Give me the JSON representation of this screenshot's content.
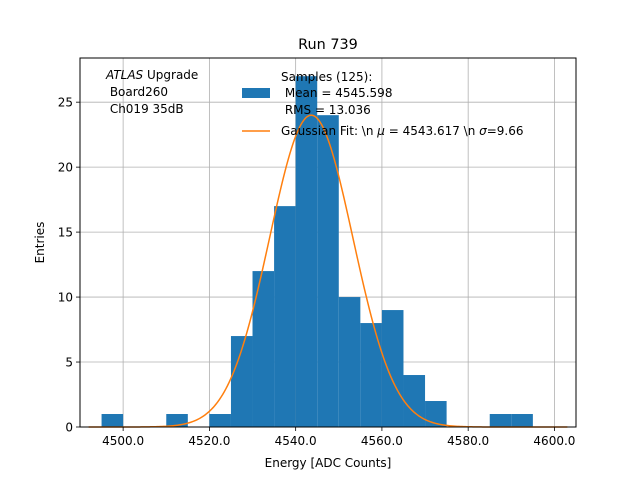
{
  "chart_data": {
    "type": "histogram",
    "title": "Run 739",
    "xlabel": "Energy [ADC Counts]",
    "ylabel": "Entries",
    "xlim": [
      4490,
      4605
    ],
    "ylim": [
      0,
      28.4
    ],
    "xticks": [
      4500.0,
      4520.0,
      4540.0,
      4560.0,
      4580.0,
      4600.0
    ],
    "xtick_labels": [
      "4500.0",
      "4520.0",
      "4540.0",
      "4560.0",
      "4580.0",
      "4600.0"
    ],
    "yticks": [
      0,
      5,
      10,
      15,
      20,
      25
    ],
    "ytick_labels": [
      "0",
      "5",
      "10",
      "15",
      "20",
      "25"
    ],
    "grid": true,
    "bin_edges": [
      4495,
      4500,
      4505,
      4510,
      4515,
      4520,
      4525,
      4530,
      4535,
      4540,
      4545,
      4550,
      4555,
      4560,
      4565,
      4570,
      4575,
      4580,
      4585,
      4590,
      4595
    ],
    "counts": [
      1,
      0,
      0,
      1,
      0,
      1,
      7,
      12,
      17,
      27,
      24,
      10,
      8,
      9,
      4,
      2,
      0,
      0,
      1,
      1
    ],
    "bar_color": "#1f77b4",
    "fit": {
      "label": "Gaussian Fit: \\n $\\mu$ = 4543.617 \\n $\\sigma$=9.66",
      "label_parts": [
        "Gaussian Fit: \\n ",
        "μ",
        " = 4543.617 \\n ",
        "σ",
        "=9.66"
      ],
      "mu": 4543.617,
      "sigma": 9.66,
      "amplitude": 24.0,
      "color": "#ff7f0e"
    },
    "legend": {
      "placement": "top-center",
      "hist_lines": [
        "Samples (125):",
        " Mean = 4545.598",
        " RMS = 13.036"
      ]
    },
    "annotation": {
      "italic_word": "ATLAS",
      "rest_first_line": " Upgrade",
      "lines": [
        " Board260",
        " Ch019 35dB"
      ]
    }
  }
}
